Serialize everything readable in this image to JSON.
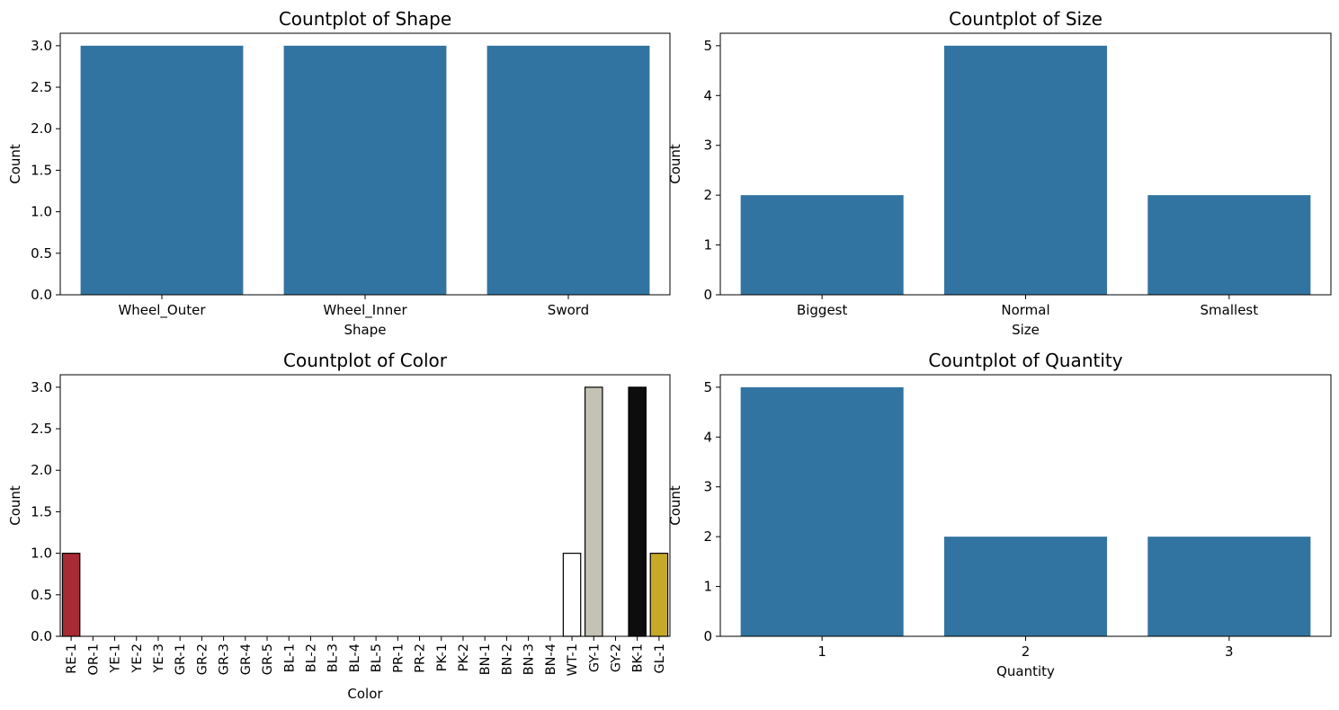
{
  "chart_data": [
    {
      "type": "bar",
      "title": "Countplot of Shape",
      "xlabel": "Shape",
      "ylabel": "Count",
      "categories": [
        "Wheel_Outer",
        "Wheel_Inner",
        "Sword"
      ],
      "values": [
        3,
        3,
        3
      ],
      "ylim": [
        0,
        3.15
      ],
      "yticks": [
        "0.0",
        "0.5",
        "1.0",
        "1.5",
        "2.0",
        "2.5",
        "3.0"
      ],
      "color": "#3274a1"
    },
    {
      "type": "bar",
      "title": "Countplot of Size",
      "xlabel": "Size",
      "ylabel": "Count",
      "categories": [
        "Biggest",
        "Normal",
        "Smallest"
      ],
      "values": [
        2,
        5,
        2
      ],
      "ylim": [
        0,
        5.25
      ],
      "yticks": [
        "0",
        "1",
        "2",
        "3",
        "4",
        "5"
      ],
      "color": "#3274a1"
    },
    {
      "type": "bar",
      "title": "Countplot of Color",
      "xlabel": "Color",
      "ylabel": "Count",
      "categories": [
        "RE-1",
        "OR-1",
        "YE-1",
        "YE-2",
        "YE-3",
        "GR-1",
        "GR-2",
        "GR-3",
        "GR-4",
        "GR-5",
        "BL-1",
        "BL-2",
        "BL-3",
        "BL-4",
        "BL-5",
        "PR-1",
        "PR-2",
        "PK-1",
        "PK-2",
        "BN-1",
        "BN-2",
        "BN-3",
        "BN-4",
        "WT-1",
        "GY-1",
        "GY-2",
        "BK-1",
        "GL-1"
      ],
      "values": [
        1,
        0,
        0,
        0,
        0,
        0,
        0,
        0,
        0,
        0,
        0,
        0,
        0,
        0,
        0,
        0,
        0,
        0,
        0,
        0,
        0,
        0,
        0,
        1,
        3,
        0,
        3,
        1
      ],
      "bar_colors": [
        "#a82a35",
        "#d9782b",
        "#e6d33a",
        "#d8c630",
        "#c9b828",
        "#2d9a4a",
        "#2d8a44",
        "#2a7a3e",
        "#276a38",
        "#245a32",
        "#2f6bb5",
        "#2a5fa2",
        "#25538f",
        "#20477c",
        "#1b3b69",
        "#7a3d9a",
        "#6a358a",
        "#e27aa8",
        "#d06a98",
        "#7a4a2a",
        "#6a4024",
        "#5a361e",
        "#4a2c18",
        "#ffffff",
        "#c4c2b4",
        "#8a8a8a",
        "#0d0d0d",
        "#c7a928"
      ],
      "edgecolor": "#000000",
      "ylim": [
        0,
        3.15
      ],
      "yticks": [
        "0.0",
        "0.5",
        "1.0",
        "1.5",
        "2.0",
        "2.5",
        "3.0"
      ]
    },
    {
      "type": "bar",
      "title": "Countplot of Quantity",
      "xlabel": "Quantity",
      "ylabel": "Count",
      "categories": [
        "1",
        "2",
        "3"
      ],
      "values": [
        5,
        2,
        2
      ],
      "ylim": [
        0,
        5.25
      ],
      "yticks": [
        "0",
        "1",
        "2",
        "3",
        "4",
        "5"
      ],
      "color": "#3274a1"
    }
  ]
}
